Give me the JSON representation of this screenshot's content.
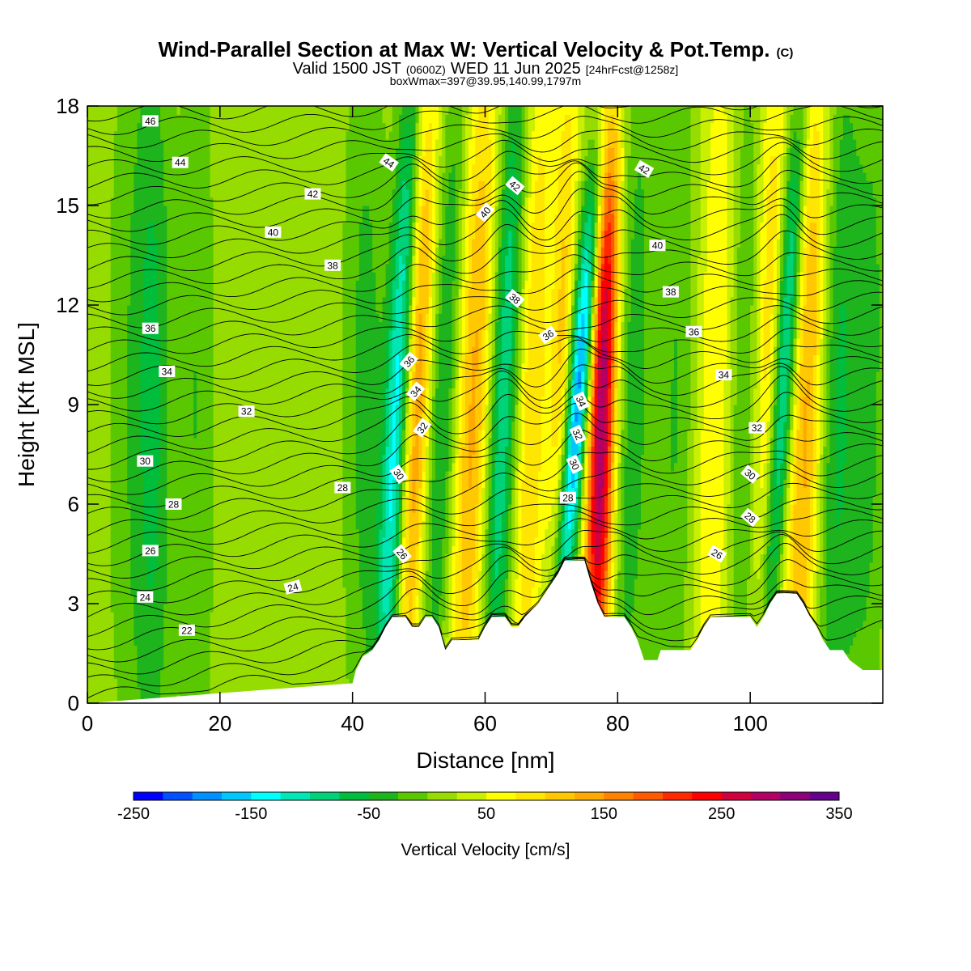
{
  "header": {
    "title_main": "Wind-Parallel Section at Max W: Vertical Velocity & Pot.Temp.",
    "title_mark": "(C)",
    "valid_prefix": "Valid 1500 JST",
    "valid_zulu": "(0600Z)",
    "valid_date": "WED 11 Jun 2025",
    "forecast": "[24hrFcst@1258z]",
    "box_info": "boxWmax=397@39.95,140.99,1797m"
  },
  "chart_data": {
    "type": "heatmap",
    "xlabel": "Distance [nm]",
    "ylabel": "Height [Kft MSL]",
    "xlim": [
      0,
      120
    ],
    "ylim": [
      0,
      18
    ],
    "x_ticks": [
      "0",
      "20",
      "40",
      "60",
      "80",
      "100"
    ],
    "y_ticks": [
      "0",
      "3",
      "6",
      "9",
      "12",
      "15",
      "18"
    ],
    "colorbar": {
      "title": "Vertical Velocity [cm/s]",
      "min": -250,
      "max": 350,
      "step": 25,
      "tick_labels": [
        "-250",
        "-150",
        "-50",
        "50",
        "150",
        "250",
        "350"
      ],
      "colors": [
        "#0000ff",
        "#0050ff",
        "#0090ff",
        "#00c8ff",
        "#00ffff",
        "#00e6b4",
        "#00d278",
        "#00be3c",
        "#1eb41e",
        "#5ac800",
        "#96dc00",
        "#c8f000",
        "#ffff00",
        "#ffe600",
        "#ffc800",
        "#ffaa00",
        "#ff8200",
        "#ff5a00",
        "#ff2800",
        "#ff0000",
        "#d2003c",
        "#b40064",
        "#8c0078",
        "#64008c"
      ]
    },
    "terrain_kft": [
      [
        0,
        0
      ],
      [
        40,
        0.6
      ],
      [
        40.5,
        1
      ],
      [
        41.5,
        1.4
      ],
      [
        43,
        1.6
      ],
      [
        44,
        1.9
      ],
      [
        45,
        2.3
      ],
      [
        46,
        2.6
      ],
      [
        48,
        2.6
      ],
      [
        49,
        2.3
      ],
      [
        50,
        2.3
      ],
      [
        51,
        2.6
      ],
      [
        52,
        2.6
      ],
      [
        53,
        2.3
      ],
      [
        54,
        1.6
      ],
      [
        55,
        1.9
      ],
      [
        59,
        1.9
      ],
      [
        60,
        2.3
      ],
      [
        61,
        2.6
      ],
      [
        63,
        2.6
      ],
      [
        64,
        2.3
      ],
      [
        65,
        2.3
      ],
      [
        66,
        2.6
      ],
      [
        68,
        3.0
      ],
      [
        69,
        3.3
      ],
      [
        70,
        3.6
      ],
      [
        71,
        3.9
      ],
      [
        72,
        4.3
      ],
      [
        75,
        4.3
      ],
      [
        76,
        3.6
      ],
      [
        77,
        3.0
      ],
      [
        78,
        2.6
      ],
      [
        81,
        2.6
      ],
      [
        82,
        2.3
      ],
      [
        83,
        1.9
      ],
      [
        84,
        1.3
      ],
      [
        86,
        1.3
      ],
      [
        86.5,
        1.6
      ],
      [
        91,
        1.6
      ],
      [
        92,
        1.9
      ],
      [
        93,
        2.3
      ],
      [
        94,
        2.6
      ],
      [
        100,
        2.6
      ],
      [
        101,
        2.3
      ],
      [
        102,
        2.6
      ],
      [
        103,
        3.0
      ],
      [
        104,
        3.3
      ],
      [
        107,
        3.3
      ],
      [
        108,
        3.0
      ],
      [
        109,
        2.6
      ],
      [
        110,
        2.3
      ],
      [
        111,
        1.9
      ],
      [
        112,
        1.6
      ],
      [
        114,
        1.6
      ],
      [
        115,
        1.3
      ],
      [
        117,
        1.0
      ],
      [
        120,
        1.0
      ]
    ],
    "contour_labels": [
      {
        "value": "46",
        "x": 9.5,
        "y": 17.55,
        "angle": 0
      },
      {
        "value": "44",
        "x": 14,
        "y": 16.3,
        "angle": 0
      },
      {
        "value": "42",
        "x": 34,
        "y": 15.35,
        "angle": 0
      },
      {
        "value": "40",
        "x": 28,
        "y": 14.2,
        "angle": 0
      },
      {
        "value": "38",
        "x": 37,
        "y": 13.2,
        "angle": 0
      },
      {
        "value": "36",
        "x": 9.5,
        "y": 11.3,
        "angle": 0
      },
      {
        "value": "34",
        "x": 12,
        "y": 10.0,
        "angle": 0
      },
      {
        "value": "32",
        "x": 24,
        "y": 8.8,
        "angle": 0
      },
      {
        "value": "30",
        "x": 8.7,
        "y": 7.3,
        "angle": 0
      },
      {
        "value": "28",
        "x": 13,
        "y": 6.0,
        "angle": 0
      },
      {
        "value": "26",
        "x": 9.5,
        "y": 4.6,
        "angle": 0
      },
      {
        "value": "24",
        "x": 8.7,
        "y": 3.2,
        "angle": 0
      },
      {
        "value": "22",
        "x": 15,
        "y": 2.2,
        "angle": 0
      },
      {
        "value": "24",
        "x": 31,
        "y": 3.5,
        "angle": -15
      },
      {
        "value": "28",
        "x": 38.5,
        "y": 6.5,
        "angle": 0
      },
      {
        "value": "44",
        "x": 45.5,
        "y": 16.3,
        "angle": 35
      },
      {
        "value": "36",
        "x": 48.5,
        "y": 10.3,
        "angle": -50
      },
      {
        "value": "34",
        "x": 49.5,
        "y": 9.4,
        "angle": -50
      },
      {
        "value": "32",
        "x": 50.5,
        "y": 8.3,
        "angle": -55
      },
      {
        "value": "30",
        "x": 47,
        "y": 6.9,
        "angle": 55
      },
      {
        "value": "26",
        "x": 47.5,
        "y": 4.5,
        "angle": 50
      },
      {
        "value": "42",
        "x": 64.5,
        "y": 15.6,
        "angle": 40
      },
      {
        "value": "40",
        "x": 60,
        "y": 14.8,
        "angle": -50
      },
      {
        "value": "38",
        "x": 64.5,
        "y": 12.2,
        "angle": 40
      },
      {
        "value": "36",
        "x": 69.5,
        "y": 11.1,
        "angle": -35
      },
      {
        "value": "34",
        "x": 74.5,
        "y": 9.1,
        "angle": 65
      },
      {
        "value": "32",
        "x": 74,
        "y": 8.1,
        "angle": 65
      },
      {
        "value": "30",
        "x": 73.5,
        "y": 7.2,
        "angle": 65
      },
      {
        "value": "28",
        "x": 72.5,
        "y": 6.2,
        "angle": 0
      },
      {
        "value": "42",
        "x": 84,
        "y": 16.1,
        "angle": 30
      },
      {
        "value": "40",
        "x": 86,
        "y": 13.8,
        "angle": 0
      },
      {
        "value": "38",
        "x": 88,
        "y": 12.4,
        "angle": 0
      },
      {
        "value": "36",
        "x": 91.5,
        "y": 11.2,
        "angle": 0
      },
      {
        "value": "34",
        "x": 96,
        "y": 9.9,
        "angle": 0
      },
      {
        "value": "32",
        "x": 101,
        "y": 8.3,
        "angle": 0
      },
      {
        "value": "30",
        "x": 100,
        "y": 6.9,
        "angle": 40
      },
      {
        "value": "28",
        "x": 100,
        "y": 5.6,
        "angle": 40
      },
      {
        "value": "26",
        "x": 95,
        "y": 4.5,
        "angle": 30
      }
    ]
  }
}
